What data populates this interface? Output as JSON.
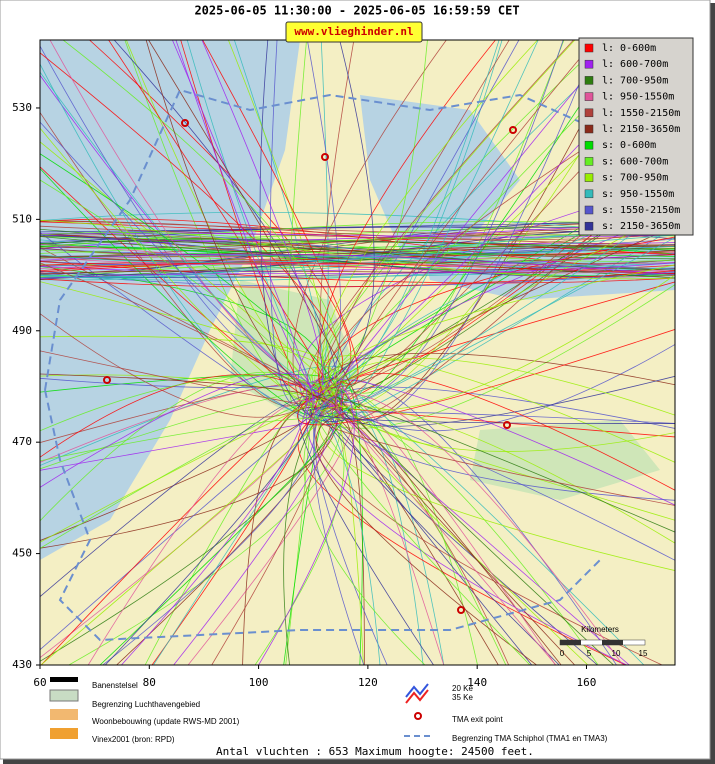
{
  "header": {
    "title": "2025-06-05 11:30:00 - 2025-06-05 16:59:59 CET",
    "url": "www.vlieghinder.nl"
  },
  "map": {
    "xlim": [
      60,
      176.2
    ],
    "ylim": [
      430,
      542.2
    ],
    "xticks": [
      60,
      80,
      100,
      120,
      140,
      160
    ],
    "yticks": [
      430,
      450,
      470,
      490,
      510,
      530
    ]
  },
  "legend": [
    {
      "label": "l: 0-600m",
      "color": "#ff0000"
    },
    {
      "label": "l: 600-700m",
      "color": "#a020f0"
    },
    {
      "label": "l: 700-950m",
      "color": "#2e7d10"
    },
    {
      "label": "l: 950-1550m",
      "color": "#e0559a"
    },
    {
      "label": "l: 1550-2150m",
      "color": "#b0403a"
    },
    {
      "label": "l: 2150-3650m",
      "color": "#8b2a1a"
    },
    {
      "label": "s: 0-600m",
      "color": "#00dd00"
    },
    {
      "label": "s: 600-700m",
      "color": "#66ee22"
    },
    {
      "label": "s: 700-950m",
      "color": "#99ee00"
    },
    {
      "label": "s: 950-1550m",
      "color": "#33bbbb"
    },
    {
      "label": "s: 1550-2150m",
      "color": "#5555cc"
    },
    {
      "label": "s: 2150-3650m",
      "color": "#333399"
    }
  ],
  "scale": {
    "title": "Kilometers",
    "ticks": [
      0,
      5,
      10,
      15
    ]
  },
  "map_legend": [
    "Banenstelsel",
    "Begrenzing Luchthavengebied",
    "Woonbebouwing (update RWS-MD 2001)",
    "Vinex2001 (bron: RPD)",
    "20 Ke",
    "35 Ke",
    "TMA exit point",
    "Begrenzing TMA Schiphol  (TMA1 en TMA3)"
  ],
  "footer": "Antal vluchten : 653 Maximum hoogte: 24500 feet."
}
